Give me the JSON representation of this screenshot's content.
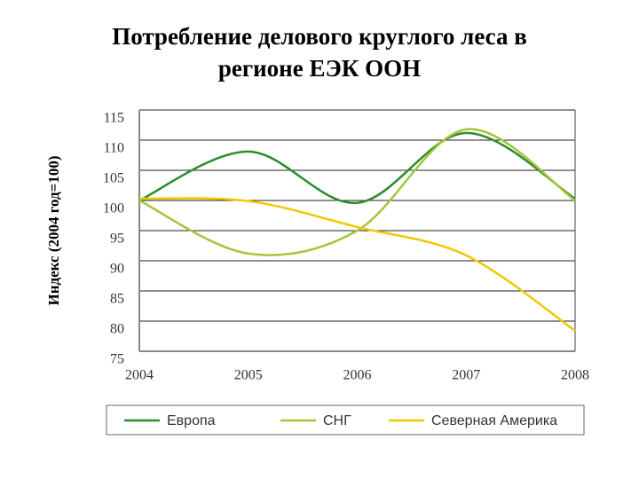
{
  "chart_data": {
    "type": "line",
    "title": [
      "Потребление делового круглого леса в",
      "регионе ЕЭК ООН"
    ],
    "y_label": "Индекс (2004 год=100)",
    "categories": [
      "2004",
      "2005",
      "2006",
      "2007",
      "2008"
    ],
    "series": [
      {
        "name": "Европа",
        "color": "#2e8b2e",
        "values": [
          100,
          108.1,
          99.6,
          111.2,
          100.3
        ]
      },
      {
        "name": "СНГ",
        "color": "#a3c639",
        "values": [
          100,
          91.2,
          95,
          111.8,
          100
        ]
      },
      {
        "name": "Северная Америка",
        "color": "#f0c800",
        "values": [
          100.3,
          99.9,
          95.6,
          90.9,
          78.4
        ]
      }
    ],
    "ylim": [
      75,
      115
    ],
    "yticks": [
      75,
      80,
      85,
      90,
      95,
      100,
      105,
      110,
      115
    ],
    "grid": true,
    "legend": "bottom"
  }
}
